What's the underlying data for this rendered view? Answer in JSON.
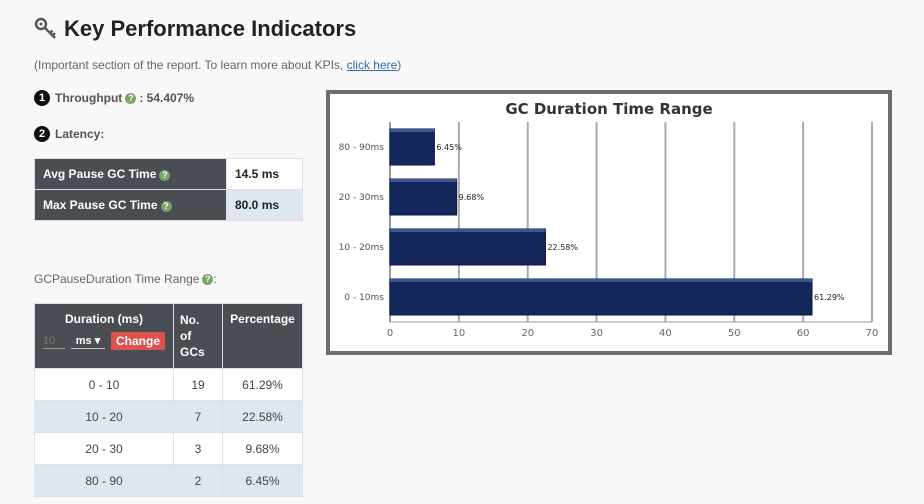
{
  "header": {
    "title": "Key Performance Indicators",
    "subtitle_prefix": "(Important section of the report. To learn more about KPIs, ",
    "subtitle_link": "click here",
    "subtitle_suffix": ")"
  },
  "throughput": {
    "num": "1",
    "label": "Throughput",
    "value": ": 54.407%"
  },
  "latency": {
    "num": "2",
    "label": "Latency:",
    "rows": [
      {
        "label": "Avg Pause GC Time",
        "value": "14.5 ms"
      },
      {
        "label": "Max Pause GC Time",
        "value": "80.0 ms"
      }
    ]
  },
  "gc_table": {
    "label": "GCPauseDuration Time Range",
    "label_suffix": ":",
    "headers": {
      "duration": "Duration (ms)",
      "count": [
        "No.",
        "of",
        "GCs"
      ],
      "percentage": "Percentage"
    },
    "duration_input": {
      "value": "",
      "placeholder": "10"
    },
    "unit_select": "ms",
    "change_button": "Change",
    "rows": [
      {
        "range": "0 - 10",
        "count": "19",
        "pct": "61.29%"
      },
      {
        "range": "10 - 20",
        "count": "7",
        "pct": "22.58%"
      },
      {
        "range": "20 - 30",
        "count": "3",
        "pct": "9.68%"
      },
      {
        "range": "80 - 90",
        "count": "2",
        "pct": "6.45%"
      }
    ]
  },
  "chart_data": {
    "type": "bar",
    "orientation": "horizontal",
    "title": "GC Duration Time Range",
    "categories": [
      "0 - 10ms",
      "10 - 20ms",
      "20 - 30ms",
      "80 - 90ms"
    ],
    "values": [
      61.29,
      22.58,
      9.68,
      6.45
    ],
    "value_labels": [
      "61.29%",
      "22.58%",
      "9.68%",
      "6.45%"
    ],
    "xlim": [
      0,
      70
    ],
    "xticks": [
      0,
      10,
      20,
      30,
      40,
      50,
      60,
      70
    ],
    "grid": true,
    "bar_color": "#14275a"
  }
}
